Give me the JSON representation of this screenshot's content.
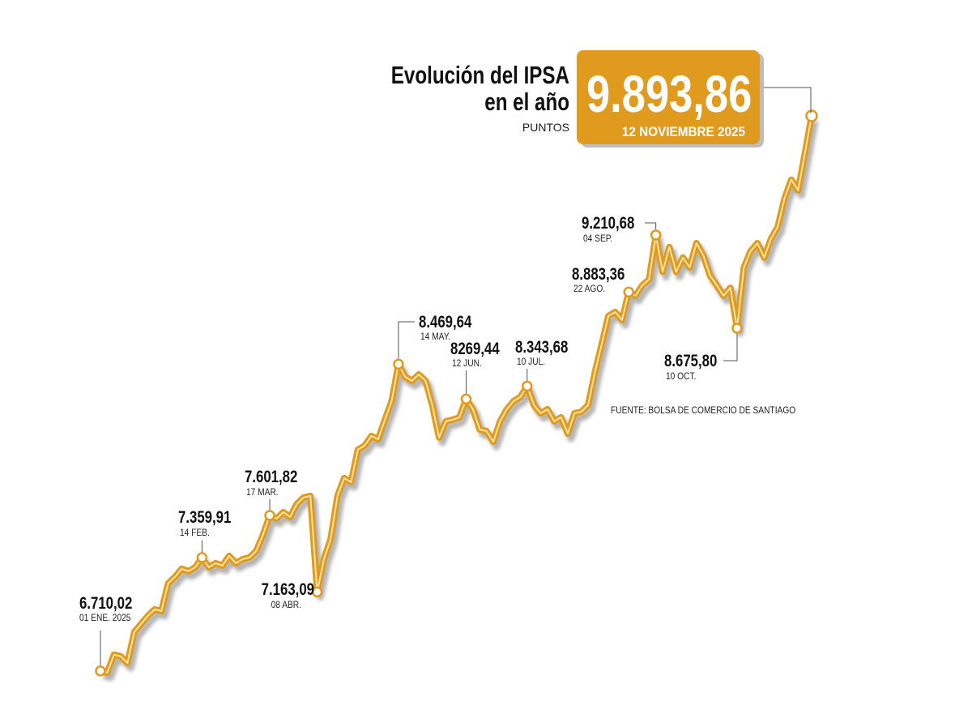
{
  "chart_data": {
    "type": "line",
    "title_lines": [
      "Evolución del IPSA",
      "en el año"
    ],
    "unit": "PUNTOS",
    "highlight": {
      "value": 9893.86,
      "label": "9.893,86",
      "date": "12 NOVIEMBRE 2025"
    },
    "source": "FUENTE: BOLSA DE COMERCIO DE SANTIAGO",
    "color": "#e09a1e",
    "values": [
      6710.02,
      6700,
      6803,
      6794,
      6756,
      6933,
      6980,
      7026,
      7063,
      7054,
      7212,
      7249,
      7296,
      7282,
      7305,
      7359.91,
      7305,
      7328,
      7314,
      7370,
      7328,
      7351,
      7361,
      7398,
      7491,
      7601.82,
      7584,
      7621,
      7593,
      7668,
      7705,
      7714,
      7163.09,
      7351,
      7468,
      7714,
      7816,
      7793,
      7979,
      8002,
      8058,
      8039,
      8151,
      8258,
      8469.64,
      8397,
      8374,
      8411,
      8374,
      8235,
      8049,
      8142,
      8151,
      8165,
      8269.44,
      8211,
      8095,
      8086,
      8025,
      8142,
      8211,
      8258,
      8281,
      8343.68,
      8235,
      8188,
      8211,
      8142,
      8165,
      8072,
      8188,
      8197,
      8235,
      8421,
      8583,
      8746,
      8769,
      8723,
      8883.36,
      8862,
      8922,
      8955,
      9210.68,
      8999,
      9141,
      8999,
      9081,
      9025,
      9164,
      9095,
      8978,
      8922,
      8862,
      8908,
      8675.8,
      9025,
      9118,
      9164,
      9081,
      9188,
      9258,
      9421,
      9528,
      9467,
      9676,
      9893.86
    ],
    "annotations": [
      {
        "value": 6710.02,
        "label": "6.710,02",
        "date": "01 ENE. 2025"
      },
      {
        "value": 7359.91,
        "label": "7.359,91",
        "date": "14 FEB."
      },
      {
        "value": 7601.82,
        "label": "7.601,82",
        "date": "17 MAR."
      },
      {
        "value": 7163.09,
        "label": "7.163,09",
        "date": "08 ABR."
      },
      {
        "value": 8469.64,
        "label": "8.469,64",
        "date": "14 MAY."
      },
      {
        "value": 8269.44,
        "label": "8269,44",
        "date": "12 JUN."
      },
      {
        "value": 8343.68,
        "label": "8.343,68",
        "date": "10 JUL."
      },
      {
        "value": 8883.36,
        "label": "8.883,36",
        "date": "22 AGO."
      },
      {
        "value": 9210.68,
        "label": "9.210,68",
        "date": "04 SEP."
      },
      {
        "value": 8675.8,
        "label": "8.675,80",
        "date": "10 OCT."
      }
    ]
  }
}
